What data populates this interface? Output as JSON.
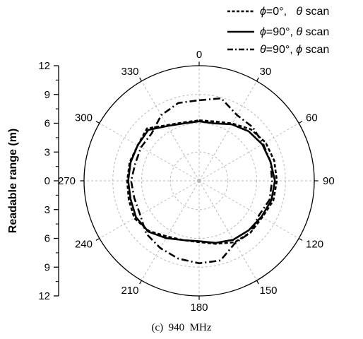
{
  "chart_data": {
    "type": "polar-line",
    "ylabel": "Readable range (m)",
    "caption": "(c)  940  MHz",
    "r_range": [
      0,
      12
    ],
    "radial_ticks": [
      "12",
      "9",
      "6",
      "3",
      "0",
      "3",
      "6",
      "9",
      "12"
    ],
    "angle_ticks": [
      "0",
      "30",
      "60",
      "90",
      "120",
      "150",
      "180",
      "210",
      "240",
      "270",
      "300",
      "330"
    ],
    "angle_direction": "clockwise",
    "angle_zero": "top",
    "grid": true,
    "legend_position": "top-right",
    "series": [
      {
        "name": "ϕ=0°,   θ scan",
        "style": "dashed",
        "theta": [
          0,
          15,
          30,
          45,
          60,
          75,
          90,
          105,
          120,
          135,
          150,
          165,
          180,
          195,
          210,
          225,
          240,
          255,
          270,
          285,
          300,
          315,
          330,
          345
        ],
        "r": [
          6.3,
          6.4,
          6.9,
          7.6,
          8.0,
          8.1,
          8.1,
          8.0,
          7.6,
          7.6,
          7.4,
          6.8,
          6.4,
          6.4,
          6.7,
          7.4,
          7.8,
          7.6,
          7.5,
          7.5,
          7.4,
          7.7,
          6.7,
          6.3
        ]
      },
      {
        "name": "ϕ=90°, θ scan",
        "style": "solid",
        "theta": [
          0,
          15,
          30,
          45,
          60,
          75,
          90,
          105,
          120,
          135,
          150,
          165,
          180,
          195,
          210,
          225,
          240,
          255,
          270,
          285,
          300,
          315,
          330,
          345
        ],
        "r": [
          6.2,
          6.2,
          6.8,
          7.3,
          7.6,
          7.7,
          7.9,
          7.8,
          7.5,
          7.3,
          7.1,
          6.7,
          6.3,
          6.4,
          6.9,
          7.5,
          7.6,
          7.4,
          7.4,
          7.4,
          7.4,
          7.5,
          6.6,
          6.2
        ]
      },
      {
        "name": "θ=90°, ϕ scan",
        "style": "dashdot",
        "theta": [
          0,
          15,
          30,
          45,
          60,
          75,
          90,
          105,
          120,
          135,
          150,
          165,
          180,
          195,
          210,
          225,
          240,
          255,
          270,
          285,
          300,
          315,
          330,
          345
        ],
        "r": [
          8.4,
          8.9,
          7.9,
          7.9,
          7.7,
          7.7,
          7.6,
          7.6,
          7.2,
          7.6,
          7.5,
          8.6,
          8.6,
          8.4,
          8.1,
          7.8,
          7.1,
          7.0,
          7.1,
          6.9,
          7.0,
          7.0,
          7.9,
          8.4
        ]
      }
    ]
  }
}
